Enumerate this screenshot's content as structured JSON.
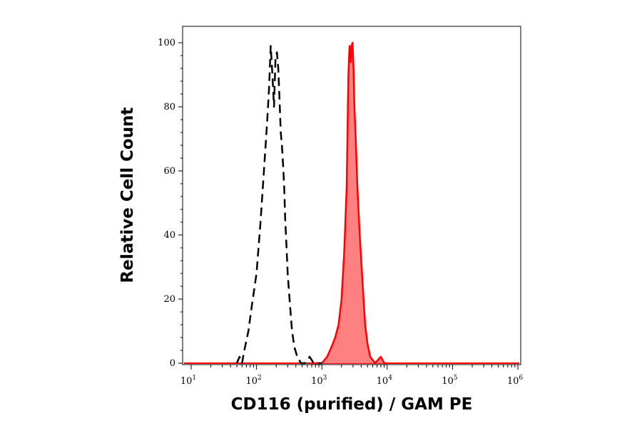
{
  "chart_data": {
    "type": "area",
    "title": "",
    "xlabel": "CD116 (purified) / GAM PE",
    "ylabel": "Relative Cell Count",
    "x_scale": "log",
    "xlim": [
      10,
      1000000
    ],
    "ylim": [
      0,
      100
    ],
    "x_ticks": [
      {
        "base": "10",
        "exp": "1"
      },
      {
        "base": "10",
        "exp": "2"
      },
      {
        "base": "10",
        "exp": "3"
      },
      {
        "base": "10",
        "exp": "4"
      },
      {
        "base": "10",
        "exp": "5"
      },
      {
        "base": "10",
        "exp": "6"
      }
    ],
    "y_ticks": [
      "0",
      "20",
      "40",
      "60",
      "80",
      "100"
    ],
    "grid": false,
    "legend": "none",
    "series": [
      {
        "style": "dashed",
        "color": "#000000",
        "fill": "none",
        "x": [
          50,
          55,
          60,
          65,
          75,
          85,
          100,
          115,
          130,
          145,
          155,
          165,
          175,
          185,
          195,
          205,
          215,
          225,
          235,
          245,
          255,
          265,
          275,
          285,
          300,
          320,
          350,
          380,
          420,
          480,
          550,
          650,
          750,
          850,
          1000
        ],
        "y": [
          0,
          2,
          0,
          4,
          10,
          18,
          28,
          44,
          60,
          75,
          85,
          99,
          90,
          80,
          95,
          97,
          92,
          82,
          72,
          68,
          62,
          55,
          45,
          38,
          28,
          20,
          10,
          5,
          2,
          0,
          0,
          2,
          0,
          0,
          0
        ]
      },
      {
        "style": "solid",
        "color": "#ff0000",
        "fill": "#ff8080",
        "x": [
          700,
          1000,
          1200,
          1400,
          1600,
          1800,
          2000,
          2200,
          2400,
          2550,
          2650,
          2750,
          2850,
          2950,
          3050,
          3150,
          3300,
          3500,
          3800,
          4200,
          4600,
          5000,
          5500,
          6500,
          8000,
          9000,
          10000
        ],
        "y": [
          0,
          0,
          2,
          5,
          8,
          12,
          20,
          35,
          55,
          90,
          99,
          94,
          99,
          100,
          92,
          80,
          70,
          55,
          40,
          25,
          12,
          6,
          2,
          0,
          2,
          0,
          0
        ]
      }
    ]
  }
}
